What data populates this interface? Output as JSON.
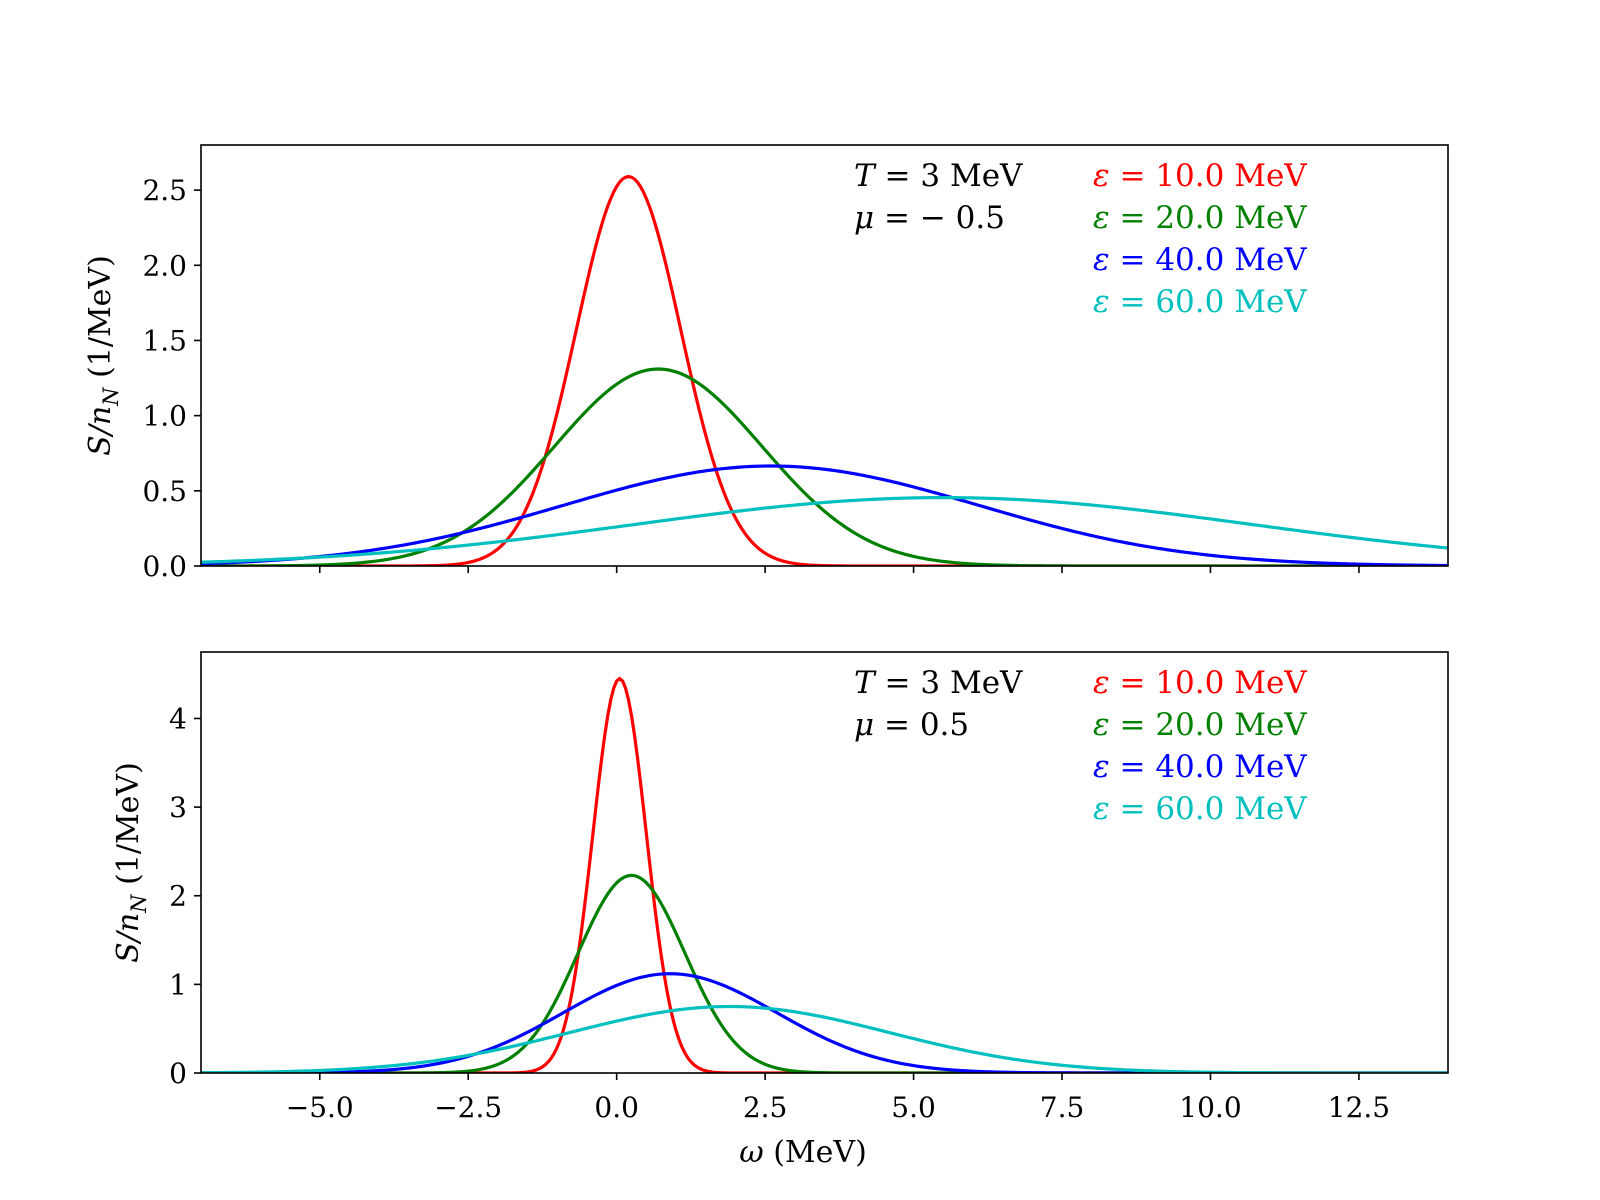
{
  "chart_data": [
    {
      "type": "line",
      "xlabel": "ω (MeV)",
      "ylabel_main": "S/n",
      "ylabel_sub": "N",
      "ylabel_unit": " (1/MeV)",
      "xlim": [
        -7.0,
        14.0
      ],
      "ylim": [
        0,
        2.8
      ],
      "yticks": [
        0.0,
        0.5,
        1.0,
        1.5,
        2.0,
        2.5
      ],
      "ytick_labels": [
        "0.0",
        "0.5",
        "1.0",
        "1.5",
        "2.0",
        "2.5"
      ],
      "xticks": [
        -5.0,
        -2.5,
        0.0,
        2.5,
        5.0,
        7.5,
        10.0,
        12.5
      ],
      "xtick_labels": [],
      "params": [
        {
          "sym": "T",
          "text": " = 3 MeV"
        },
        {
          "sym": "μ",
          "text": " = − 0.5"
        }
      ],
      "legend_position": "top-right",
      "series": [
        {
          "name": "ε = 10.0 MeV",
          "sym": "ε",
          "text": " = 10.0 MeV",
          "color": "#ff0000",
          "peak_x": 0.2,
          "peak_y": 2.59,
          "sigma": 0.88
        },
        {
          "name": "ε = 20.0 MeV",
          "sym": "ε",
          "text": " = 20.0 MeV",
          "color": "#008000",
          "peak_x": 0.7,
          "peak_y": 1.31,
          "sigma": 1.75
        },
        {
          "name": "ε = 40.0 MeV",
          "sym": "ε",
          "text": " = 40.0 MeV",
          "color": "#0000ff",
          "peak_x": 2.6,
          "peak_y": 0.665,
          "sigma": 3.5
        },
        {
          "name": "ε = 60.0 MeV",
          "sym": "ε",
          "text": " = 60.0 MeV",
          "color": "#00bfbf",
          "peak_x": 5.5,
          "peak_y": 0.455,
          "sigma": 5.2
        }
      ]
    },
    {
      "type": "line",
      "xlabel": "ω (MeV)",
      "ylabel_main": "S/n",
      "ylabel_sub": "N",
      "ylabel_unit": " (1/MeV)",
      "xlim": [
        -7.0,
        14.0
      ],
      "ylim": [
        0,
        4.75
      ],
      "yticks": [
        0,
        1,
        2,
        3,
        4
      ],
      "ytick_labels": [
        "0",
        "1",
        "2",
        "3",
        "4"
      ],
      "xticks": [
        -5.0,
        -2.5,
        0.0,
        2.5,
        5.0,
        7.5,
        10.0,
        12.5
      ],
      "xtick_labels": [
        "−5.0",
        "−2.5",
        "0.0",
        "2.5",
        "5.0",
        "7.5",
        "10.0",
        "12.5"
      ],
      "params": [
        {
          "sym": "T",
          "text": " = 3 MeV"
        },
        {
          "sym": "μ",
          "text": " = 0.5"
        }
      ],
      "legend_position": "top-right",
      "series": [
        {
          "name": "ε = 10.0 MeV",
          "sym": "ε",
          "text": " = 10.0 MeV",
          "color": "#ff0000",
          "peak_x": 0.05,
          "peak_y": 4.45,
          "sigma": 0.45
        },
        {
          "name": "ε = 20.0 MeV",
          "sym": "ε",
          "text": " = 20.0 MeV",
          "color": "#008000",
          "peak_x": 0.25,
          "peak_y": 2.23,
          "sigma": 0.9
        },
        {
          "name": "ε = 40.0 MeV",
          "sym": "ε",
          "text": " = 40.0 MeV",
          "color": "#0000ff",
          "peak_x": 0.9,
          "peak_y": 1.12,
          "sigma": 1.8
        },
        {
          "name": "ε = 60.0 MeV",
          "sym": "ε",
          "text": " = 60.0 MeV",
          "color": "#00bfbf",
          "peak_x": 1.9,
          "peak_y": 0.75,
          "sigma": 2.7
        }
      ]
    }
  ]
}
